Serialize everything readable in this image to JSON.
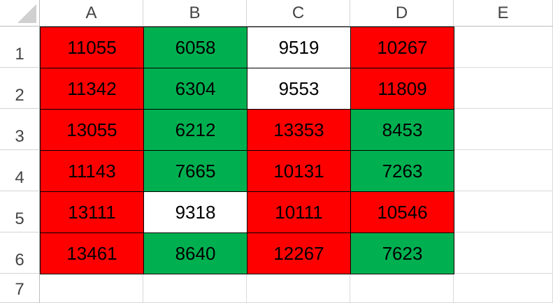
{
  "sheet": {
    "columns": [
      "A",
      "B",
      "C",
      "D",
      "E"
    ],
    "row_numbers": [
      1,
      2,
      3,
      4,
      5,
      6,
      7
    ],
    "rows": [
      [
        11055,
        6058,
        9519,
        10267
      ],
      [
        11342,
        6304,
        9553,
        11809
      ],
      [
        13055,
        6212,
        13353,
        8453
      ],
      [
        11143,
        7665,
        10131,
        7263
      ],
      [
        13111,
        9318,
        10111,
        10546
      ],
      [
        13461,
        8640,
        12267,
        7623
      ]
    ],
    "fills": [
      [
        "#ff0000",
        "#00b050",
        "#ffffff",
        "#ff0000"
      ],
      [
        "#ff0000",
        "#00b050",
        "#ffffff",
        "#ff0000"
      ],
      [
        "#ff0000",
        "#00b050",
        "#ff0000",
        "#00b050"
      ],
      [
        "#ff0000",
        "#00b050",
        "#ff0000",
        "#00b050"
      ],
      [
        "#ff0000",
        "#ffffff",
        "#ff0000",
        "#ff0000"
      ],
      [
        "#ff0000",
        "#00b050",
        "#ff0000",
        "#00b050"
      ]
    ]
  }
}
